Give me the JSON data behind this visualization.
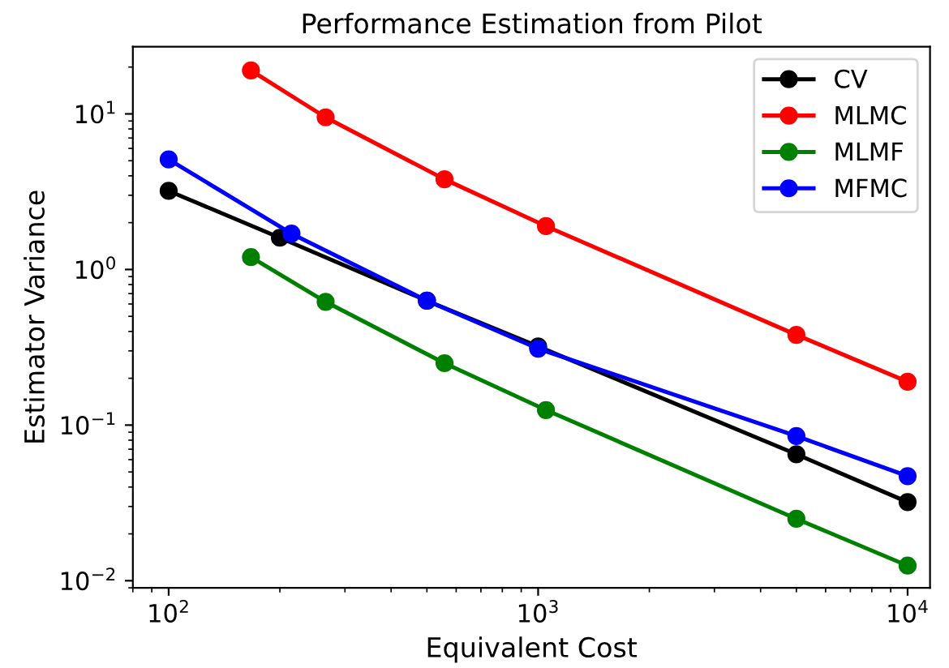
{
  "chart_data": {
    "type": "line",
    "title": "Performance Estimation from Pilot",
    "xlabel": "Equivalent Cost",
    "ylabel": "Estimator Variance",
    "log": "xy",
    "xlim": [
      80,
      11500
    ],
    "ylim": [
      0.009,
      27
    ],
    "xticks": [
      {
        "value": 100,
        "label": "10$^{2}$"
      },
      {
        "value": 1000,
        "label": "10$^{3}$"
      },
      {
        "value": 10000,
        "label": "10$^{4}$"
      }
    ],
    "yticks": [
      {
        "value": 0.01,
        "label": "10$^{−2}$"
      },
      {
        "value": 0.1,
        "label": "10$^{−1}$"
      },
      {
        "value": 1,
        "label": "10$^{0}$"
      },
      {
        "value": 10,
        "label": "10$^{1}$"
      }
    ],
    "marker": "circle",
    "line_style": "solid",
    "legend": "top right",
    "grid": false,
    "series": [
      {
        "name": "CV",
        "color": "#000000",
        "x": [
          100,
          200,
          500,
          1000,
          5000,
          10000
        ],
        "values": [
          3.2,
          1.6,
          0.63,
          0.32,
          0.065,
          0.032
        ]
      },
      {
        "name": "MLMC",
        "color": "#ff0000",
        "x": [
          167,
          266,
          558,
          1050,
          5000,
          10000
        ],
        "values": [
          19,
          9.5,
          3.8,
          1.9,
          0.38,
          0.19
        ]
      },
      {
        "name": "MLMF",
        "color": "#008000",
        "x": [
          167,
          266,
          558,
          1050,
          5000,
          10000
        ],
        "values": [
          1.2,
          0.62,
          0.25,
          0.125,
          0.025,
          0.0125
        ]
      },
      {
        "name": "MFMC",
        "color": "#0000ff",
        "x": [
          100,
          215,
          500,
          1000,
          5000,
          10000
        ],
        "values": [
          5.1,
          1.7,
          0.63,
          0.31,
          0.085,
          0.047
        ]
      }
    ]
  }
}
